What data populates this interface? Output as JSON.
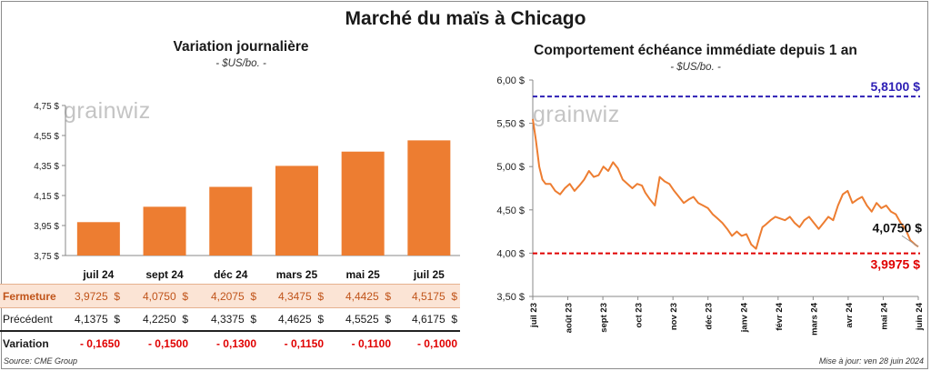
{
  "main_title": "Marché du maïs à Chicago",
  "watermark": "grainwiz",
  "left_panel": {
    "title": "Variation journalière",
    "subtitle": "- $US/bo. -"
  },
  "right_panel": {
    "title": "Comportement échéance immédiate depuis 1 an",
    "subtitle": "- $US/bo. -"
  },
  "table": {
    "rows": [
      {
        "label": "Fermeture",
        "values": [
          "3,9725  $",
          "4,0750  $",
          "4,2075  $",
          "4,3475  $",
          "4,4425  $",
          "4,5175  $"
        ]
      },
      {
        "label": "Précédent",
        "values": [
          "4,1375  $",
          "4,2250  $",
          "4,3375  $",
          "4,4625  $",
          "4,5525  $",
          "4,6175  $"
        ]
      },
      {
        "label": "Variation",
        "values": [
          "- 0,1650",
          "- 0,1500",
          "- 0,1300",
          "- 0,1150",
          "- 0,1100",
          "- 0,1000"
        ]
      }
    ]
  },
  "footer": {
    "source": "Source: CME Group",
    "updated": "Mise à jour: ven 28 juin 2024"
  },
  "colors": {
    "bar": "#ed7d31",
    "line": "#ed7d31",
    "max_line": "#2e20b5",
    "min_line": "#e00000",
    "close_row_bg": "#fbe4d5"
  },
  "chart_data": [
    {
      "type": "bar",
      "title": "Variation journalière",
      "subtitle": "- $US/bo. -",
      "categories": [
        "juil 24",
        "sept 24",
        "déc 24",
        "mars 25",
        "mai 25",
        "juil 25"
      ],
      "values": [
        3.9725,
        4.075,
        4.2075,
        4.3475,
        4.4425,
        4.5175
      ],
      "ylim": [
        3.75,
        4.75
      ],
      "yticks": [
        3.75,
        3.95,
        4.15,
        4.35,
        4.55,
        4.75
      ],
      "ytick_labels": [
        "3,75 $",
        "3,95 $",
        "4,15 $",
        "4,35 $",
        "4,55 $",
        "4,75 $"
      ],
      "grid": false
    },
    {
      "type": "line",
      "title": "Comportement échéance immédiate depuis 1 an",
      "subtitle": "- $US/bo. -",
      "xlim": [
        0,
        12
      ],
      "ylim": [
        3.5,
        6.0
      ],
      "yticks": [
        3.5,
        4.0,
        4.5,
        5.0,
        5.5,
        6.0
      ],
      "ytick_labels": [
        "3,50 $",
        "4,00 $",
        "4,50 $",
        "5,00 $",
        "5,50 $",
        "6,00 $"
      ],
      "xtick_labels": [
        "juil 23",
        "août 23",
        "sept 23",
        "oct 23",
        "nov 23",
        "déc 23",
        "janv 24",
        "févr 24",
        "mars 24",
        "avr 24",
        "mai 24",
        "juin 24"
      ],
      "grid": false,
      "reference_lines": [
        {
          "value": 5.81,
          "label": "5,8100 $",
          "color": "#2e20b5"
        },
        {
          "value": 3.9975,
          "label": "3,9975 $",
          "color": "#e00000"
        }
      ],
      "last_value_label": "4,0750 $",
      "x": [
        0,
        0.1,
        0.2,
        0.3,
        0.4,
        0.55,
        0.7,
        0.85,
        1.0,
        1.15,
        1.3,
        1.45,
        1.6,
        1.75,
        1.9,
        2.05,
        2.2,
        2.35,
        2.5,
        2.65,
        2.8,
        2.95,
        3.1,
        3.25,
        3.4,
        3.5,
        3.65,
        3.8,
        3.95,
        4.1,
        4.25,
        4.4,
        4.55,
        4.7,
        4.85,
        5.0,
        5.15,
        5.3,
        5.45,
        5.6,
        5.75,
        5.9,
        6.05,
        6.2,
        6.35,
        6.5,
        6.65,
        6.8,
        6.95,
        7.05,
        7.15,
        7.25,
        7.4,
        7.55,
        7.7,
        7.85,
        8.0,
        8.15,
        8.3,
        8.45,
        8.6,
        8.75,
        8.9,
        9.05,
        9.2,
        9.35,
        9.5,
        9.65,
        9.8,
        9.95,
        10.1,
        10.25,
        10.4,
        10.55,
        10.7,
        10.85,
        11.0,
        11.15,
        11.3,
        11.45,
        11.6,
        11.75,
        11.9,
        12.0
      ],
      "y": [
        5.55,
        5.3,
        5.0,
        4.85,
        4.8,
        4.8,
        4.72,
        4.68,
        4.75,
        4.8,
        4.72,
        4.78,
        4.85,
        4.95,
        4.88,
        4.9,
        5.0,
        4.95,
        5.05,
        4.98,
        4.85,
        4.8,
        4.75,
        4.8,
        4.78,
        4.7,
        4.62,
        4.55,
        4.88,
        4.83,
        4.8,
        4.72,
        4.65,
        4.58,
        4.62,
        4.65,
        4.58,
        4.55,
        4.52,
        4.45,
        4.4,
        4.35,
        4.28,
        4.2,
        4.25,
        4.2,
        4.22,
        4.1,
        4.05,
        4.18,
        4.3,
        4.33,
        4.38,
        4.42,
        4.4,
        4.38,
        4.42,
        4.35,
        4.3,
        4.38,
        4.42,
        4.35,
        4.28,
        4.35,
        4.42,
        4.38,
        4.55,
        4.68,
        4.72,
        4.58,
        4.62,
        4.65,
        4.55,
        4.48,
        4.58,
        4.52,
        4.55,
        4.48,
        4.45,
        4.35,
        4.28,
        4.15,
        4.1,
        4.075
      ]
    }
  ]
}
